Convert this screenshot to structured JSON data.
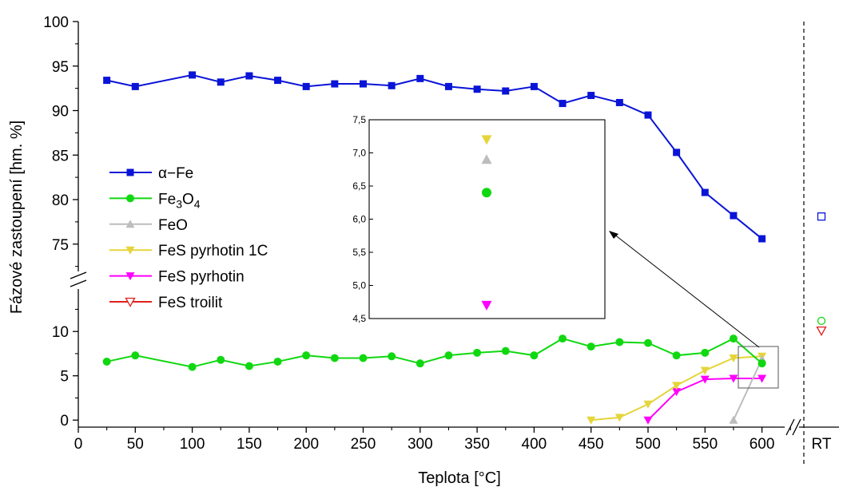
{
  "chart_data": {
    "type": "line",
    "xlabel": "Teplota [°C]",
    "ylabel": "Fázové zastoupení [hm. %]",
    "x_ticks": [
      "0",
      "50",
      "100",
      "150",
      "200",
      "250",
      "300",
      "350",
      "400",
      "450",
      "500",
      "550",
      "600"
    ],
    "x_break_label": "RT",
    "xlim": [
      0,
      630
    ],
    "y_lower": {
      "range": [
        -0.5,
        14.5
      ],
      "ticks": [
        "0",
        "5",
        "10"
      ]
    },
    "y_upper": {
      "range": [
        71.5,
        100
      ],
      "ticks": [
        "75",
        "80",
        "85",
        "90",
        "95",
        "100"
      ]
    },
    "legend_position": "left",
    "series": [
      {
        "name": "α−Fe",
        "color": "#0a14d6",
        "marker": "square",
        "x": [
          25,
          50,
          100,
          125,
          150,
          175,
          200,
          225,
          250,
          275,
          300,
          325,
          350,
          375,
          400,
          425,
          450,
          475,
          500,
          525,
          550,
          575,
          600
        ],
        "y": [
          93.4,
          92.7,
          94.0,
          93.2,
          93.9,
          93.4,
          92.7,
          93.0,
          93.0,
          92.8,
          93.6,
          92.7,
          92.4,
          92.2,
          92.7,
          90.8,
          91.7,
          90.9,
          89.5,
          85.3,
          80.8,
          78.2,
          75.6
        ],
        "rt": 78.1
      },
      {
        "name": "Fe3O4",
        "color": "#10d810",
        "marker": "circle",
        "x": [
          25,
          50,
          100,
          125,
          150,
          175,
          200,
          225,
          250,
          275,
          300,
          325,
          350,
          375,
          400,
          425,
          450,
          475,
          500,
          525,
          550,
          575,
          600
        ],
        "y": [
          6.6,
          7.3,
          6.0,
          6.8,
          6.1,
          6.6,
          7.3,
          7.0,
          7.0,
          7.2,
          6.4,
          7.3,
          7.6,
          7.8,
          7.3,
          9.2,
          8.3,
          8.8,
          8.7,
          7.3,
          7.6,
          9.2,
          6.4
        ],
        "rt": 11.2
      },
      {
        "name": "FeO",
        "color": "#bdbdbd",
        "marker": "triangle-up",
        "x": [
          575,
          600
        ],
        "y": [
          0,
          6.9
        ]
      },
      {
        "name": "FeS pyrhotin 1C",
        "color": "#e5d53a",
        "marker": "triangle-down",
        "x": [
          450,
          475,
          500,
          525,
          550,
          575,
          600
        ],
        "y": [
          0,
          0.3,
          1.8,
          3.9,
          5.6,
          7.0,
          7.2
        ]
      },
      {
        "name": "FeS pyrhotin",
        "color": "#ff00ff",
        "marker": "triangle-down",
        "x": [
          500,
          525,
          550,
          575,
          600
        ],
        "y": [
          0,
          3.2,
          4.6,
          4.7,
          4.7
        ]
      },
      {
        "name": "FeS troilit",
        "color": "#e0201c",
        "marker": "triangle-down-open",
        "rt": 10.1
      }
    ],
    "inset": {
      "zoom_of_x": 600,
      "ylim": [
        4.5,
        7.5
      ],
      "y_ticks": [
        "4,5",
        "5,0",
        "5,5",
        "6,0",
        "6,5",
        "7,0",
        "7,5"
      ],
      "points": [
        {
          "series": "FeS pyrhotin 1C",
          "y": 7.2
        },
        {
          "series": "FeO",
          "y": 6.9
        },
        {
          "series": "Fe3O4",
          "y": 6.4
        },
        {
          "series": "FeS pyrhotin",
          "y": 4.7
        }
      ]
    }
  }
}
